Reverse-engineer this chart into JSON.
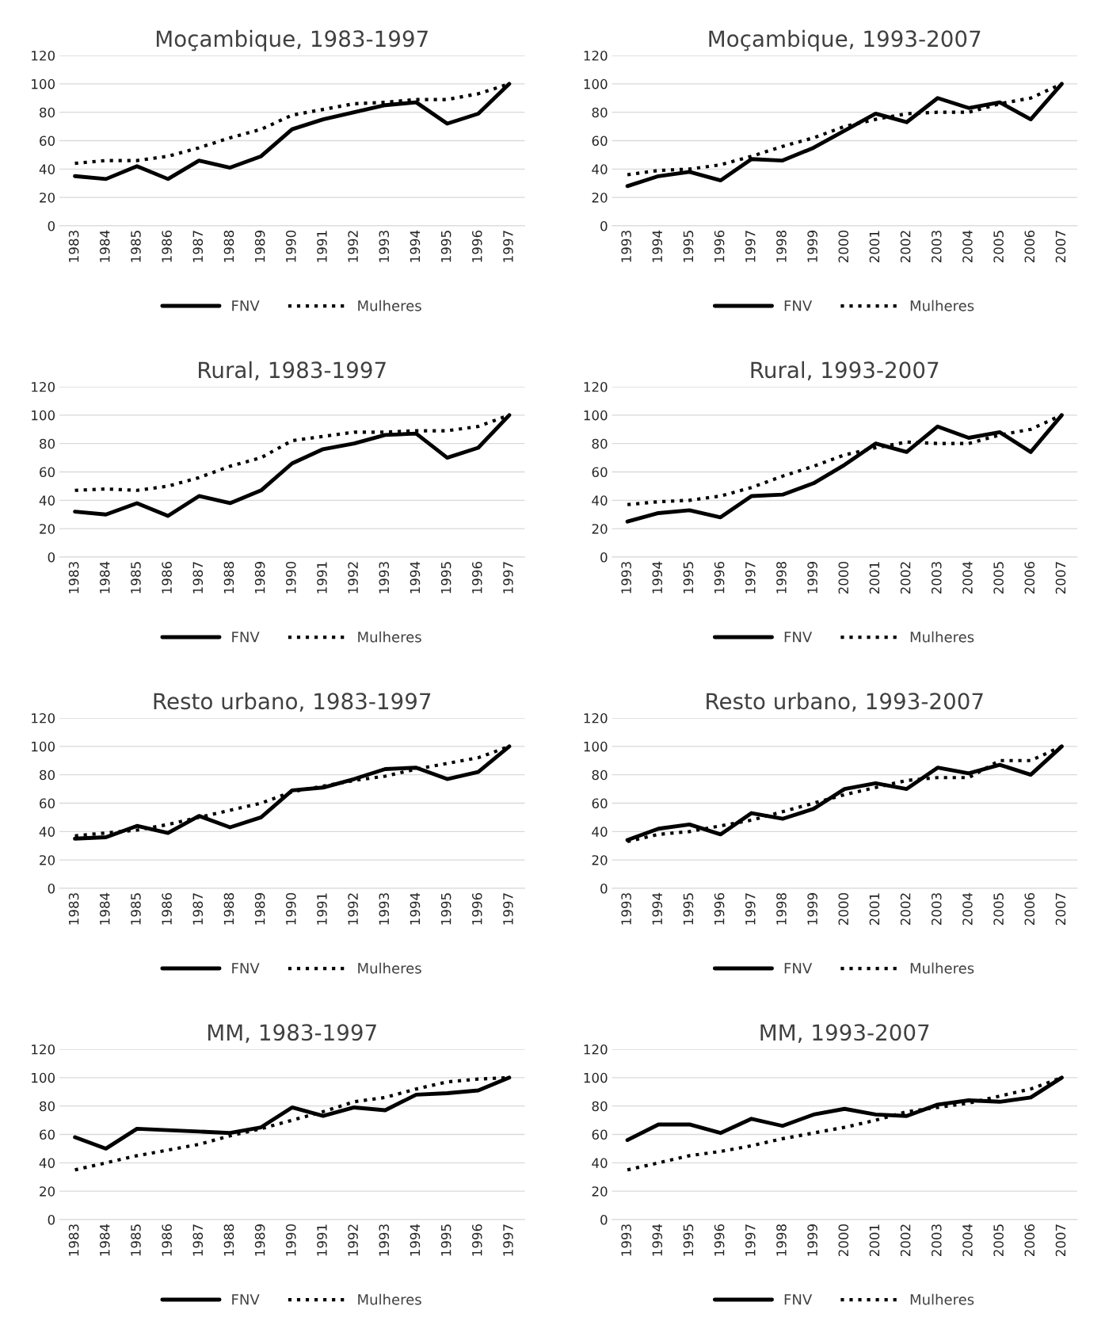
{
  "chart_data": [
    {
      "type": "line",
      "title": "Moçambique, 1983-1997",
      "categories": [
        "1983",
        "1984",
        "1985",
        "1986",
        "1987",
        "1988",
        "1989",
        "1990",
        "1991",
        "1992",
        "1993",
        "1994",
        "1995",
        "1996",
        "1997"
      ],
      "ylim": [
        0,
        120
      ],
      "yticks": [
        0,
        20,
        40,
        60,
        80,
        100,
        120
      ],
      "grid": "y",
      "legend": "bottom",
      "series": [
        {
          "name": "FNV",
          "color": "#000000",
          "line_style": "solid",
          "values": [
            35,
            33,
            42,
            33,
            46,
            41,
            49,
            68,
            75,
            80,
            85,
            87,
            72,
            79,
            100
          ]
        },
        {
          "name": "Mulheres",
          "color": "#000000",
          "line_style": "dotted",
          "values": [
            44,
            46,
            46,
            49,
            55,
            62,
            68,
            78,
            82,
            86,
            87,
            89,
            89,
            93,
            100
          ]
        }
      ]
    },
    {
      "type": "line",
      "title": "Moçambique, 1993-2007",
      "categories": [
        "1993",
        "1994",
        "1995",
        "1996",
        "1997",
        "1998",
        "1999",
        "2000",
        "2001",
        "2002",
        "2003",
        "2004",
        "2005",
        "2006",
        "2007"
      ],
      "ylim": [
        0,
        120
      ],
      "yticks": [
        0,
        20,
        40,
        60,
        80,
        100,
        120
      ],
      "grid": "y",
      "legend": "bottom",
      "series": [
        {
          "name": "FNV",
          "color": "#000000",
          "line_style": "solid",
          "values": [
            28,
            35,
            38,
            32,
            47,
            46,
            55,
            67,
            79,
            73,
            90,
            83,
            87,
            75,
            100
          ]
        },
        {
          "name": "Mulheres",
          "color": "#000000",
          "line_style": "dotted",
          "values": [
            36,
            39,
            40,
            43,
            49,
            56,
            62,
            70,
            75,
            79,
            80,
            80,
            86,
            90,
            100
          ]
        }
      ]
    },
    {
      "type": "line",
      "title": "Rural, 1983-1997",
      "categories": [
        "1983",
        "1984",
        "1985",
        "1986",
        "1987",
        "1988",
        "1989",
        "1990",
        "1991",
        "1992",
        "1993",
        "1994",
        "1995",
        "1996",
        "1997"
      ],
      "ylim": [
        0,
        120
      ],
      "yticks": [
        0,
        20,
        40,
        60,
        80,
        100,
        120
      ],
      "grid": "y",
      "legend": "bottom",
      "series": [
        {
          "name": "FNV",
          "color": "#000000",
          "line_style": "solid",
          "values": [
            32,
            30,
            38,
            29,
            43,
            38,
            47,
            66,
            76,
            80,
            86,
            87,
            70,
            77,
            100
          ]
        },
        {
          "name": "Mulheres",
          "color": "#000000",
          "line_style": "dotted",
          "values": [
            47,
            48,
            47,
            50,
            56,
            64,
            70,
            82,
            85,
            88,
            88,
            89,
            89,
            92,
            100
          ]
        }
      ]
    },
    {
      "type": "line",
      "title": "Rural, 1993-2007",
      "categories": [
        "1993",
        "1994",
        "1995",
        "1996",
        "1997",
        "1998",
        "1999",
        "2000",
        "2001",
        "2002",
        "2003",
        "2004",
        "2005",
        "2006",
        "2007"
      ],
      "ylim": [
        0,
        120
      ],
      "yticks": [
        0,
        20,
        40,
        60,
        80,
        100,
        120
      ],
      "grid": "y",
      "legend": "bottom",
      "series": [
        {
          "name": "FNV",
          "color": "#000000",
          "line_style": "solid",
          "values": [
            25,
            31,
            33,
            28,
            43,
            44,
            52,
            65,
            80,
            74,
            92,
            84,
            88,
            74,
            100
          ]
        },
        {
          "name": "Mulheres",
          "color": "#000000",
          "line_style": "dotted",
          "values": [
            37,
            39,
            40,
            43,
            49,
            57,
            64,
            72,
            77,
            81,
            80,
            80,
            86,
            90,
            100
          ]
        }
      ]
    },
    {
      "type": "line",
      "title": "Resto urbano, 1983-1997",
      "categories": [
        "1983",
        "1984",
        "1985",
        "1986",
        "1987",
        "1988",
        "1989",
        "1990",
        "1991",
        "1992",
        "1993",
        "1994",
        "1995",
        "1996",
        "1997"
      ],
      "ylim": [
        0,
        120
      ],
      "yticks": [
        0,
        20,
        40,
        60,
        80,
        100,
        120
      ],
      "grid": "y",
      "legend": "bottom",
      "series": [
        {
          "name": "FNV",
          "color": "#000000",
          "line_style": "solid",
          "values": [
            35,
            36,
            44,
            39,
            51,
            43,
            50,
            69,
            71,
            77,
            84,
            85,
            77,
            82,
            100
          ]
        },
        {
          "name": "Mulheres",
          "color": "#000000",
          "line_style": "dotted",
          "values": [
            37,
            39,
            41,
            45,
            50,
            55,
            60,
            68,
            72,
            76,
            79,
            84,
            88,
            92,
            100
          ]
        }
      ]
    },
    {
      "type": "line",
      "title": "Resto urbano, 1993-2007",
      "categories": [
        "1993",
        "1994",
        "1995",
        "1996",
        "1997",
        "1998",
        "1999",
        "2000",
        "2001",
        "2002",
        "2003",
        "2004",
        "2005",
        "2006",
        "2007"
      ],
      "ylim": [
        0,
        120
      ],
      "yticks": [
        0,
        20,
        40,
        60,
        80,
        100,
        120
      ],
      "grid": "y",
      "legend": "bottom",
      "series": [
        {
          "name": "FNV",
          "color": "#000000",
          "line_style": "solid",
          "values": [
            34,
            42,
            45,
            38,
            53,
            49,
            56,
            70,
            74,
            70,
            85,
            81,
            87,
            80,
            100
          ]
        },
        {
          "name": "Mulheres",
          "color": "#000000",
          "line_style": "dotted",
          "values": [
            33,
            38,
            40,
            44,
            48,
            54,
            60,
            66,
            71,
            76,
            78,
            78,
            90,
            90,
            100
          ]
        }
      ]
    },
    {
      "type": "line",
      "title": "MM, 1983-1997",
      "categories": [
        "1983",
        "1984",
        "1985",
        "1986",
        "1987",
        "1988",
        "1989",
        "1990",
        "1991",
        "1992",
        "1993",
        "1994",
        "1995",
        "1996",
        "1997"
      ],
      "ylim": [
        0,
        120
      ],
      "yticks": [
        0,
        20,
        40,
        60,
        80,
        100,
        120
      ],
      "grid": "y",
      "legend": "bottom",
      "series": [
        {
          "name": "FNV",
          "color": "#000000",
          "line_style": "solid",
          "values": [
            58,
            50,
            64,
            63,
            62,
            61,
            65,
            79,
            73,
            79,
            77,
            88,
            89,
            91,
            100
          ]
        },
        {
          "name": "Mulheres",
          "color": "#000000",
          "line_style": "dotted",
          "values": [
            35,
            40,
            45,
            49,
            53,
            59,
            64,
            70,
            76,
            83,
            86,
            92,
            97,
            99,
            100
          ]
        }
      ]
    },
    {
      "type": "line",
      "title": "MM, 1993-2007",
      "categories": [
        "1993",
        "1994",
        "1995",
        "1996",
        "1997",
        "1998",
        "1999",
        "2000",
        "2001",
        "2002",
        "2003",
        "2004",
        "2005",
        "2006",
        "2007"
      ],
      "ylim": [
        0,
        120
      ],
      "yticks": [
        0,
        20,
        40,
        60,
        80,
        100,
        120
      ],
      "grid": "y",
      "legend": "bottom",
      "series": [
        {
          "name": "FNV",
          "color": "#000000",
          "line_style": "solid",
          "values": [
            56,
            67,
            67,
            61,
            71,
            66,
            74,
            78,
            74,
            73,
            81,
            84,
            83,
            86,
            100
          ]
        },
        {
          "name": "Mulheres",
          "color": "#000000",
          "line_style": "dotted",
          "values": [
            35,
            40,
            45,
            48,
            52,
            57,
            61,
            65,
            70,
            76,
            79,
            82,
            87,
            92,
            100
          ]
        }
      ]
    }
  ]
}
